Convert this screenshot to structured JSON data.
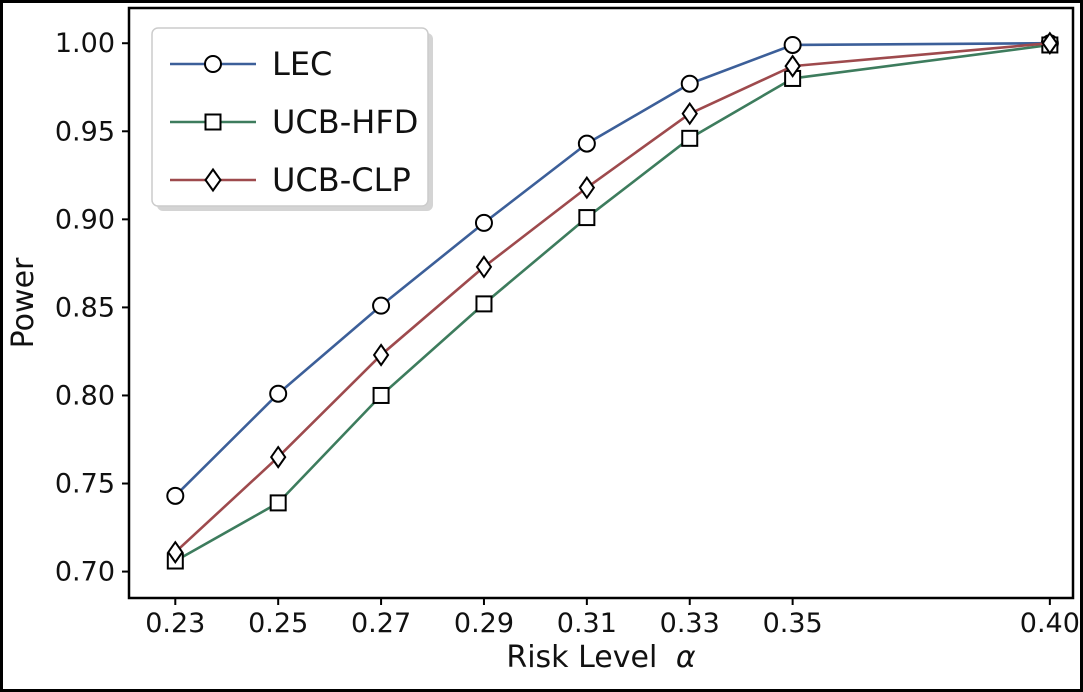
{
  "figure": {
    "background": "#ffffff",
    "border_color": "#000000"
  },
  "chart_data": {
    "type": "line",
    "title": "",
    "xlabel": "Risk Level",
    "xlabel_symbol": "α",
    "ylabel": "Power",
    "x": [
      0.23,
      0.25,
      0.27,
      0.29,
      0.31,
      0.33,
      0.35,
      0.4
    ],
    "series": [
      {
        "name": "LEC",
        "marker": "circle",
        "color": "#3c5f99",
        "values": [
          0.743,
          0.801,
          0.851,
          0.898,
          0.943,
          0.977,
          0.999,
          1.0
        ]
      },
      {
        "name": "UCB-HFD",
        "marker": "square",
        "color": "#3d7c5d",
        "values": [
          0.706,
          0.739,
          0.8,
          0.852,
          0.901,
          0.946,
          0.98,
          0.999
        ]
      },
      {
        "name": "UCB-CLP",
        "marker": "diamond",
        "color": "#9e4a4d",
        "values": [
          0.711,
          0.765,
          0.823,
          0.873,
          0.918,
          0.96,
          0.987,
          1.0
        ]
      }
    ],
    "xticks": [
      0.23,
      0.25,
      0.27,
      0.29,
      0.31,
      0.33,
      0.35,
      0.4
    ],
    "yticks": [
      0.7,
      0.75,
      0.8,
      0.85,
      0.9,
      0.95,
      1.0
    ],
    "xlim": [
      0.221,
      0.4045
    ],
    "ylim": [
      0.685,
      1.02
    ],
    "grid": false,
    "legend_position": "upper left",
    "marker_fill": "#ffffff",
    "marker_edge": "#000000",
    "axis_color": "#000000"
  }
}
